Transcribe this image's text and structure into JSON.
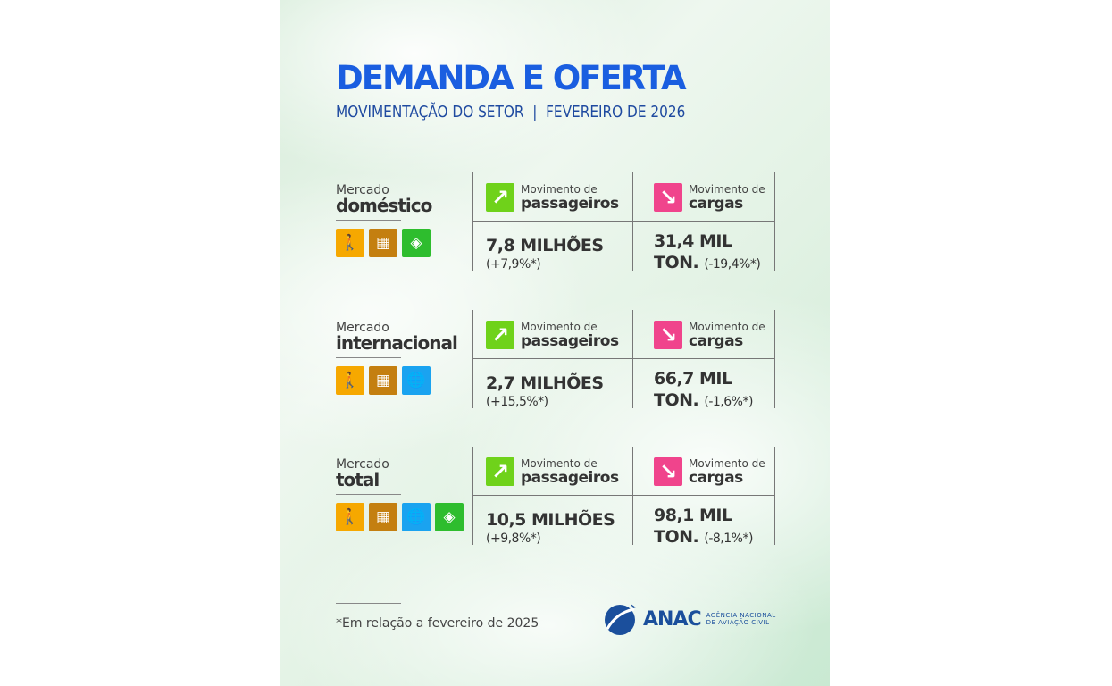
{
  "header": {
    "title": "DEMANDA E OFERTA",
    "subtitle": "MOVIMENTAÇÃO DO SETOR  |  FEVEREIRO DE 2026"
  },
  "colors": {
    "title": "#1a5ee0",
    "passenger_arrow": "#6fd21a",
    "cargo_arrow": "#f0448c",
    "icon_passenger": "#f6a800",
    "icon_cargo": "#c47f10",
    "icon_brazil": "#2ebd2e",
    "icon_globe": "#1aa3f0"
  },
  "rows": [
    {
      "label_small": "Mercado",
      "label_big": "doméstico",
      "icons": [
        "passenger-icon",
        "cargo-box-icon",
        "brazil-flag-icon"
      ],
      "pax_small": "Movimento de",
      "pax_big": "passageiros",
      "pax_value": "7,8 MILHÕES",
      "pax_pct": "(+7,9%*)",
      "cargo_small": "Movimento de",
      "cargo_big": "cargas",
      "cargo_value": "31,4 MIL",
      "cargo_unit": "TON.",
      "cargo_pct": "(-19,4%*)"
    },
    {
      "label_small": "Mercado",
      "label_big": "internacional",
      "icons": [
        "passenger-icon",
        "cargo-box-icon",
        "globe-icon"
      ],
      "pax_small": "Movimento de",
      "pax_big": "passageiros",
      "pax_value": "2,7 MILHÕES",
      "pax_pct": "(+15,5%*)",
      "cargo_small": "Movimento de",
      "cargo_big": "cargas",
      "cargo_value": "66,7 MIL",
      "cargo_unit": "TON.",
      "cargo_pct": "(-1,6%*)"
    },
    {
      "label_small": "Mercado",
      "label_big": "total",
      "icons": [
        "passenger-icon",
        "cargo-box-icon",
        "globe-icon",
        "brazil-flag-icon"
      ],
      "pax_small": "Movimento de",
      "pax_big": "passageiros",
      "pax_value": "10,5 MILHÕES",
      "pax_pct": "(+9,8%*)",
      "cargo_small": "Movimento de",
      "cargo_big": "cargas",
      "cargo_value": "98,1 MIL",
      "cargo_unit": "TON.",
      "cargo_pct": "(-8,1%*)"
    }
  ],
  "footer": {
    "note": "*Em relação a fevereiro de 2025",
    "logo": "ANAC",
    "agency_line1": "AGÊNCIA NACIONAL",
    "agency_line2": "DE AVIAÇÃO CIVIL"
  }
}
